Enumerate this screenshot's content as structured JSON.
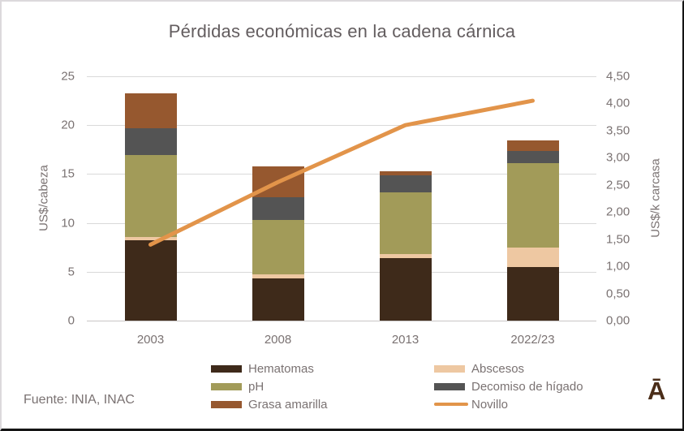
{
  "title": "Pérdidas económicas en la cadena cárnica",
  "footer": {
    "source": "Fuente: INIA, INAC",
    "logo": "Ā"
  },
  "colors": {
    "text": "#7a7272",
    "grid": "#d9d9d9",
    "logo_brown": "#4a2d18"
  },
  "chart_data": {
    "type": "bar",
    "subtype": "stacked-bars-with-line-overlay",
    "title": "Pérdidas económicas en la cadena cárnica",
    "categories": [
      "2003",
      "2008",
      "2013",
      "2022/23"
    ],
    "bar_series": [
      {
        "name": "Hematomas",
        "color": "#3e2a1a",
        "values": [
          8.2,
          4.3,
          6.4,
          5.5
        ]
      },
      {
        "name": "Abscesos",
        "color": "#eec8a2",
        "values": [
          0.35,
          0.45,
          0.4,
          2.0
        ]
      },
      {
        "name": "pH",
        "color": "#a29b59",
        "values": [
          8.4,
          5.55,
          6.3,
          8.6
        ]
      },
      {
        "name": "Decomiso de hígado",
        "color": "#545454",
        "values": [
          2.7,
          2.3,
          1.8,
          1.3
        ]
      },
      {
        "name": "Grasa amarilla",
        "color": "#96582f",
        "values": [
          3.6,
          3.2,
          0.4,
          1.0
        ]
      }
    ],
    "bar_totals": [
      23.25,
      15.8,
      15.3,
      18.4
    ],
    "line_series": {
      "name": "Novillo",
      "color": "#e2944a",
      "axis": "right",
      "values": [
        1.4,
        2.55,
        3.6,
        4.05
      ]
    },
    "left_axis": {
      "title": "US$/cabeza",
      "min": 0,
      "max": 25,
      "tick_step": 5,
      "tick_labels": [
        "0",
        "5",
        "10",
        "15",
        "20",
        "25"
      ]
    },
    "right_axis": {
      "title": "US$/k carcasa",
      "min": 0,
      "max": 4.5,
      "tick_step": 0.5,
      "tick_labels": [
        "0,00",
        "0,50",
        "1,00",
        "1,50",
        "2,00",
        "2,50",
        "3,00",
        "3,50",
        "4,00",
        "4,50"
      ]
    },
    "grid": true,
    "legend_position": "bottom",
    "legend_columns": [
      [
        "Hematomas",
        "pH",
        "Grasa amarilla"
      ],
      [
        "Abscesos",
        "Decomiso de hígado",
        "Novillo"
      ]
    ]
  }
}
